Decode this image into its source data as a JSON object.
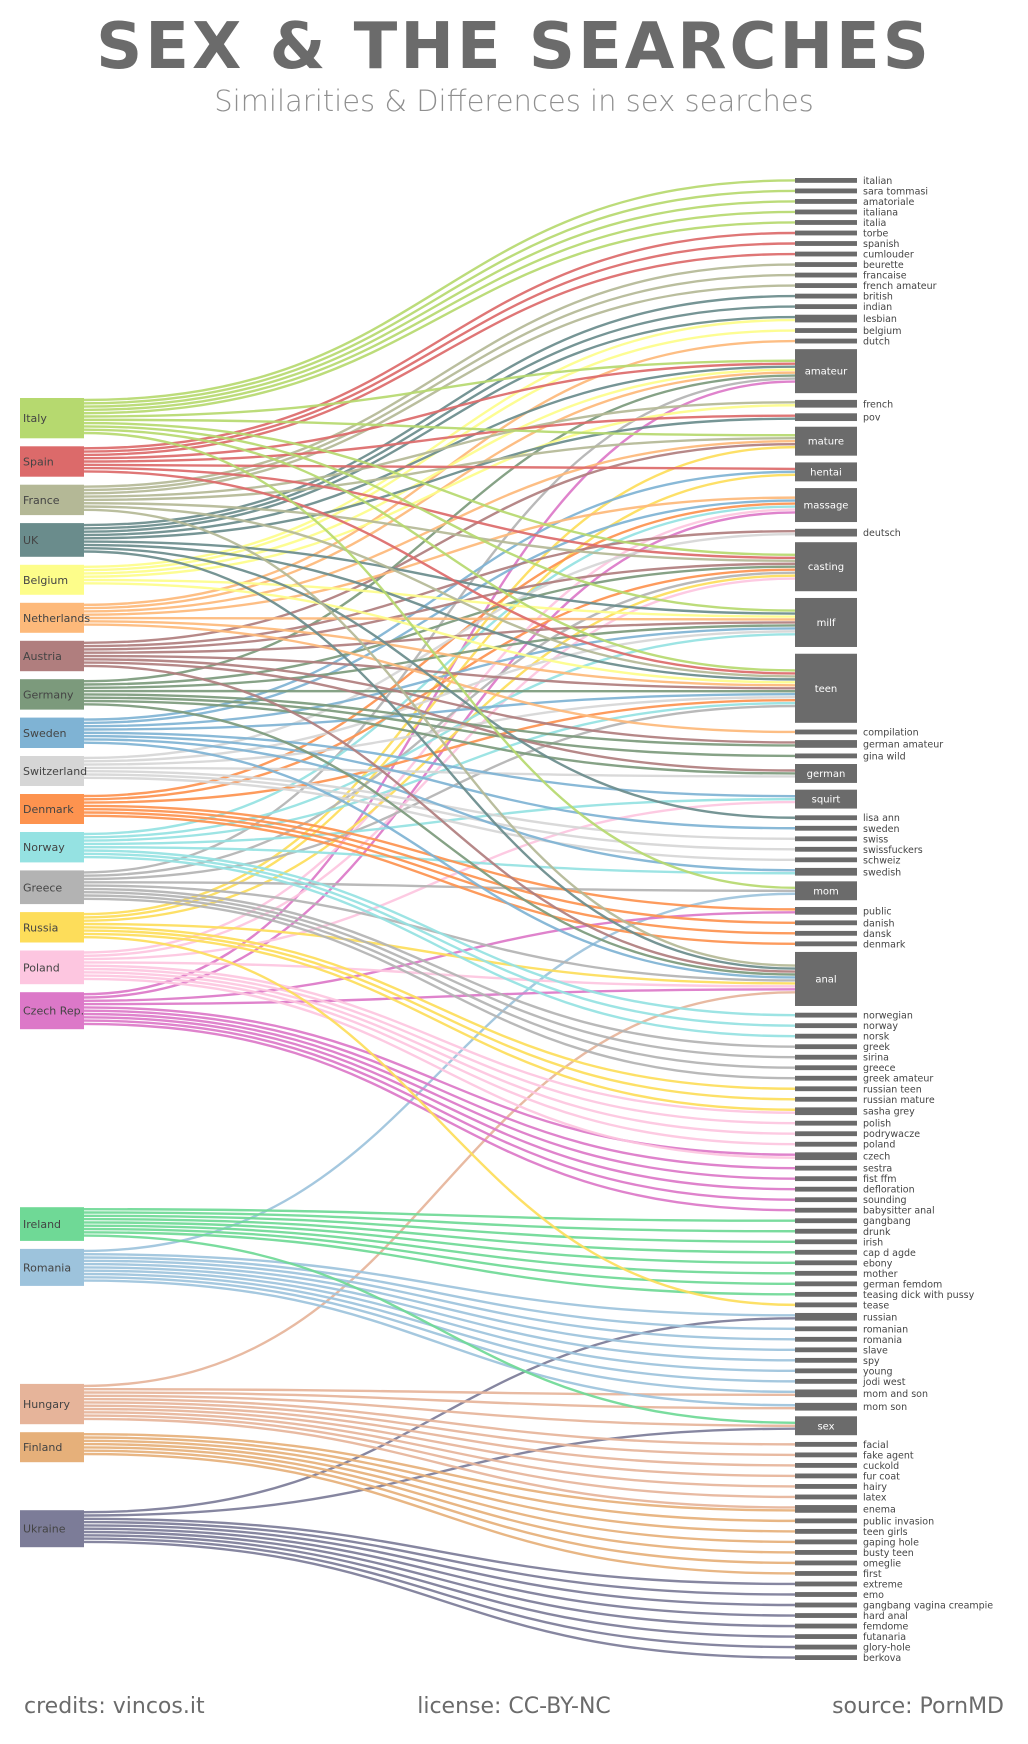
{
  "title": "SEX & THE SEARCHES",
  "subtitle": "Similarities & Differences in sex searches",
  "footer": {
    "credits": "credits: vincos.it",
    "license": "license: CC-BY-NC",
    "source": "source: PornMD"
  },
  "chart_data": {
    "type": "sankey",
    "countries": [
      {
        "name": "Italy",
        "color": "#b6d96f"
      },
      {
        "name": "Spain",
        "color": "#dc6a6a"
      },
      {
        "name": "France",
        "color": "#b4b896"
      },
      {
        "name": "UK",
        "color": "#6a8c8c"
      },
      {
        "name": "Belgium",
        "color": "#fdfd8a"
      },
      {
        "name": "Netherlands",
        "color": "#fdb97a"
      },
      {
        "name": "Austria",
        "color": "#b07e7e"
      },
      {
        "name": "Germany",
        "color": "#7c9a7c"
      },
      {
        "name": "Sweden",
        "color": "#7fb3d4"
      },
      {
        "name": "Switzerland",
        "color": "#d6d6d6"
      },
      {
        "name": "Denmark",
        "color": "#fd934f"
      },
      {
        "name": "Norway",
        "color": "#95e2e2"
      },
      {
        "name": "Greece",
        "color": "#b3b3b3"
      },
      {
        "name": "Russia",
        "color": "#fddd5a"
      },
      {
        "name": "Poland",
        "color": "#fdc6e0"
      },
      {
        "name": "Czech Rep.",
        "color": "#dc78c8"
      },
      {
        "name": "Ireland",
        "color": "#6fd996"
      },
      {
        "name": "Romania",
        "color": "#9dc3dc"
      },
      {
        "name": "Hungary",
        "color": "#e6b49a"
      },
      {
        "name": "Finland",
        "color": "#e6b07a"
      },
      {
        "name": "Ukraine",
        "color": "#7c7c98"
      }
    ],
    "terms": [
      {
        "name": "italian",
        "sources": [
          "Italy"
        ]
      },
      {
        "name": "sara tommasi",
        "sources": [
          "Italy"
        ]
      },
      {
        "name": "amatoriale",
        "sources": [
          "Italy"
        ]
      },
      {
        "name": "italiana",
        "sources": [
          "Italy"
        ]
      },
      {
        "name": "italia",
        "sources": [
          "Italy"
        ]
      },
      {
        "name": "torbe",
        "sources": [
          "Spain"
        ]
      },
      {
        "name": "spanish",
        "sources": [
          "Spain"
        ]
      },
      {
        "name": "cumlouder",
        "sources": [
          "Spain"
        ]
      },
      {
        "name": "beurette",
        "sources": [
          "France"
        ]
      },
      {
        "name": "francaise",
        "sources": [
          "France"
        ]
      },
      {
        "name": "french amateur",
        "sources": [
          "France"
        ]
      },
      {
        "name": "british",
        "sources": [
          "UK"
        ]
      },
      {
        "name": "indian",
        "sources": [
          "UK"
        ]
      },
      {
        "name": "lesbian",
        "sources": [
          "UK",
          "Belgium"
        ]
      },
      {
        "name": "belgium",
        "sources": [
          "Belgium"
        ]
      },
      {
        "name": "dutch",
        "sources": [
          "Netherlands"
        ]
      },
      {
        "name": "amateur",
        "sources": [
          "Italy",
          "Spain",
          "UK",
          "Belgium",
          "Netherlands",
          "Germany",
          "Greece",
          "Czech Rep."
        ]
      },
      {
        "name": "french",
        "sources": [
          "France",
          "Belgium"
        ]
      },
      {
        "name": "pov",
        "sources": [
          "Spain",
          "UK"
        ]
      },
      {
        "name": "mature",
        "sources": [
          "Italy",
          "France",
          "Netherlands",
          "Austria",
          "Russia"
        ]
      },
      {
        "name": "hentai",
        "sources": [
          "Spain",
          "Sweden",
          "Russia"
        ]
      },
      {
        "name": "massage",
        "sources": [
          "Netherlands",
          "Sweden",
          "Denmark",
          "Norway",
          "Poland",
          "Czech Rep."
        ]
      },
      {
        "name": "deutsch",
        "sources": [
          "Austria",
          "Switzerland"
        ]
      },
      {
        "name": "casting",
        "sources": [
          "Italy",
          "Spain",
          "France",
          "Austria",
          "Germany",
          "Denmark",
          "Greece",
          "Russia",
          "Poland"
        ]
      },
      {
        "name": "milf",
        "sources": [
          "Italy",
          "UK",
          "Belgium",
          "Netherlands",
          "Austria",
          "Germany",
          "Sweden",
          "Switzerland",
          "Norway"
        ]
      },
      {
        "name": "teen",
        "sources": [
          "Italy",
          "Spain",
          "France",
          "UK",
          "Belgium",
          "Netherlands",
          "Austria",
          "Germany",
          "Sweden",
          "Switzerland",
          "Denmark",
          "Norway",
          "Greece"
        ]
      },
      {
        "name": "compilation",
        "sources": [
          "Netherlands"
        ]
      },
      {
        "name": "german amateur",
        "sources": [
          "Austria",
          "Germany"
        ]
      },
      {
        "name": "gina wild",
        "sources": [
          "Germany"
        ]
      },
      {
        "name": "german",
        "sources": [
          "Austria",
          "Germany",
          "Switzerland"
        ]
      },
      {
        "name": "squirt",
        "sources": [
          "Sweden",
          "Norway",
          "Poland"
        ]
      },
      {
        "name": "lisa ann",
        "sources": [
          "UK"
        ]
      },
      {
        "name": "sweden",
        "sources": [
          "Sweden"
        ]
      },
      {
        "name": "swiss",
        "sources": [
          "Switzerland"
        ]
      },
      {
        "name": "swissfuckers",
        "sources": [
          "Switzerland"
        ]
      },
      {
        "name": "schweiz",
        "sources": [
          "Switzerland"
        ]
      },
      {
        "name": "swedish",
        "sources": [
          "Sweden",
          "Norway"
        ]
      },
      {
        "name": "mom",
        "sources": [
          "Italy",
          "Greece",
          "Romania"
        ]
      },
      {
        "name": "public",
        "sources": [
          "Denmark",
          "Czech Rep."
        ]
      },
      {
        "name": "danish",
        "sources": [
          "Denmark"
        ]
      },
      {
        "name": "dansk",
        "sources": [
          "Denmark"
        ]
      },
      {
        "name": "denmark",
        "sources": [
          "Denmark"
        ]
      },
      {
        "name": "anal",
        "sources": [
          "France",
          "UK",
          "Austria",
          "Germany",
          "Sweden",
          "Greece",
          "Russia",
          "Poland",
          "Czech Rep.",
          "Hungary"
        ]
      },
      {
        "name": "norwegian",
        "sources": [
          "Norway"
        ]
      },
      {
        "name": "norway",
        "sources": [
          "Norway"
        ]
      },
      {
        "name": "norsk",
        "sources": [
          "Norway"
        ]
      },
      {
        "name": "greek",
        "sources": [
          "Greece"
        ]
      },
      {
        "name": "sirina",
        "sources": [
          "Greece"
        ]
      },
      {
        "name": "greece",
        "sources": [
          "Greece"
        ]
      },
      {
        "name": "greek amateur",
        "sources": [
          "Greece"
        ]
      },
      {
        "name": "russian teen",
        "sources": [
          "Russia"
        ]
      },
      {
        "name": "russian mature",
        "sources": [
          "Russia"
        ]
      },
      {
        "name": "sasha grey",
        "sources": [
          "Russia",
          "Poland"
        ]
      },
      {
        "name": "polish",
        "sources": [
          "Poland"
        ]
      },
      {
        "name": "podrywacze",
        "sources": [
          "Poland"
        ]
      },
      {
        "name": "poland",
        "sources": [
          "Poland"
        ]
      },
      {
        "name": "czech",
        "sources": [
          "Czech Rep.",
          "Poland"
        ]
      },
      {
        "name": "sestra",
        "sources": [
          "Czech Rep."
        ]
      },
      {
        "name": "fist ffm",
        "sources": [
          "Czech Rep."
        ]
      },
      {
        "name": "defloration",
        "sources": [
          "Czech Rep."
        ]
      },
      {
        "name": "sounding",
        "sources": [
          "Czech Rep."
        ]
      },
      {
        "name": "babysitter anal",
        "sources": [
          "Czech Rep."
        ]
      },
      {
        "name": "gangbang",
        "sources": [
          "Ireland"
        ]
      },
      {
        "name": "drunk",
        "sources": [
          "Ireland"
        ]
      },
      {
        "name": "irish",
        "sources": [
          "Ireland"
        ]
      },
      {
        "name": "cap d agde",
        "sources": [
          "Ireland"
        ]
      },
      {
        "name": "ebony",
        "sources": [
          "Ireland"
        ]
      },
      {
        "name": "mother",
        "sources": [
          "Ireland"
        ]
      },
      {
        "name": "german femdom",
        "sources": [
          "Ireland"
        ]
      },
      {
        "name": "teasing dick with pussy",
        "sources": [
          "Ireland"
        ]
      },
      {
        "name": "tease",
        "sources": [
          "Russia"
        ]
      },
      {
        "name": "russian",
        "sources": [
          "Romania",
          "Ukraine"
        ]
      },
      {
        "name": "romanian",
        "sources": [
          "Romania"
        ]
      },
      {
        "name": "romania",
        "sources": [
          "Romania"
        ]
      },
      {
        "name": "slave",
        "sources": [
          "Romania"
        ]
      },
      {
        "name": "spy",
        "sources": [
          "Romania"
        ]
      },
      {
        "name": "young",
        "sources": [
          "Romania"
        ]
      },
      {
        "name": "jodi west",
        "sources": [
          "Romania"
        ]
      },
      {
        "name": "mom and son",
        "sources": [
          "Romania",
          "Hungary"
        ]
      },
      {
        "name": "mom son",
        "sources": [
          "Romania",
          "Hungary"
        ]
      },
      {
        "name": "sex",
        "sources": [
          "Ireland",
          "Hungary",
          "Ukraine"
        ]
      },
      {
        "name": "facial",
        "sources": [
          "Hungary"
        ]
      },
      {
        "name": "fake agent",
        "sources": [
          "Hungary"
        ]
      },
      {
        "name": "cuckold",
        "sources": [
          "Hungary"
        ]
      },
      {
        "name": "fur coat",
        "sources": [
          "Hungary"
        ]
      },
      {
        "name": "hairy",
        "sources": [
          "Hungary"
        ]
      },
      {
        "name": "latex",
        "sources": [
          "Hungary"
        ]
      },
      {
        "name": "enema",
        "sources": [
          "Hungary",
          "Finland"
        ]
      },
      {
        "name": "public invasion",
        "sources": [
          "Finland"
        ]
      },
      {
        "name": "teen girls",
        "sources": [
          "Finland"
        ]
      },
      {
        "name": "gaping hole",
        "sources": [
          "Finland"
        ]
      },
      {
        "name": "busty teen",
        "sources": [
          "Finland"
        ]
      },
      {
        "name": "omeglie",
        "sources": [
          "Finland"
        ]
      },
      {
        "name": "first",
        "sources": [
          "Finland"
        ]
      },
      {
        "name": "extreme",
        "sources": [
          "Ukraine"
        ]
      },
      {
        "name": "emo",
        "sources": [
          "Ukraine"
        ]
      },
      {
        "name": "gangbang vagina creampie",
        "sources": [
          "Ukraine"
        ]
      },
      {
        "name": "hard anal",
        "sources": [
          "Ukraine"
        ]
      },
      {
        "name": "femdome",
        "sources": [
          "Ukraine"
        ]
      },
      {
        "name": "futanaria",
        "sources": [
          "Ukraine"
        ]
      },
      {
        "name": "glory-hole",
        "sources": [
          "Ukraine"
        ]
      },
      {
        "name": "berkova",
        "sources": [
          "Ukraine"
        ]
      }
    ]
  }
}
